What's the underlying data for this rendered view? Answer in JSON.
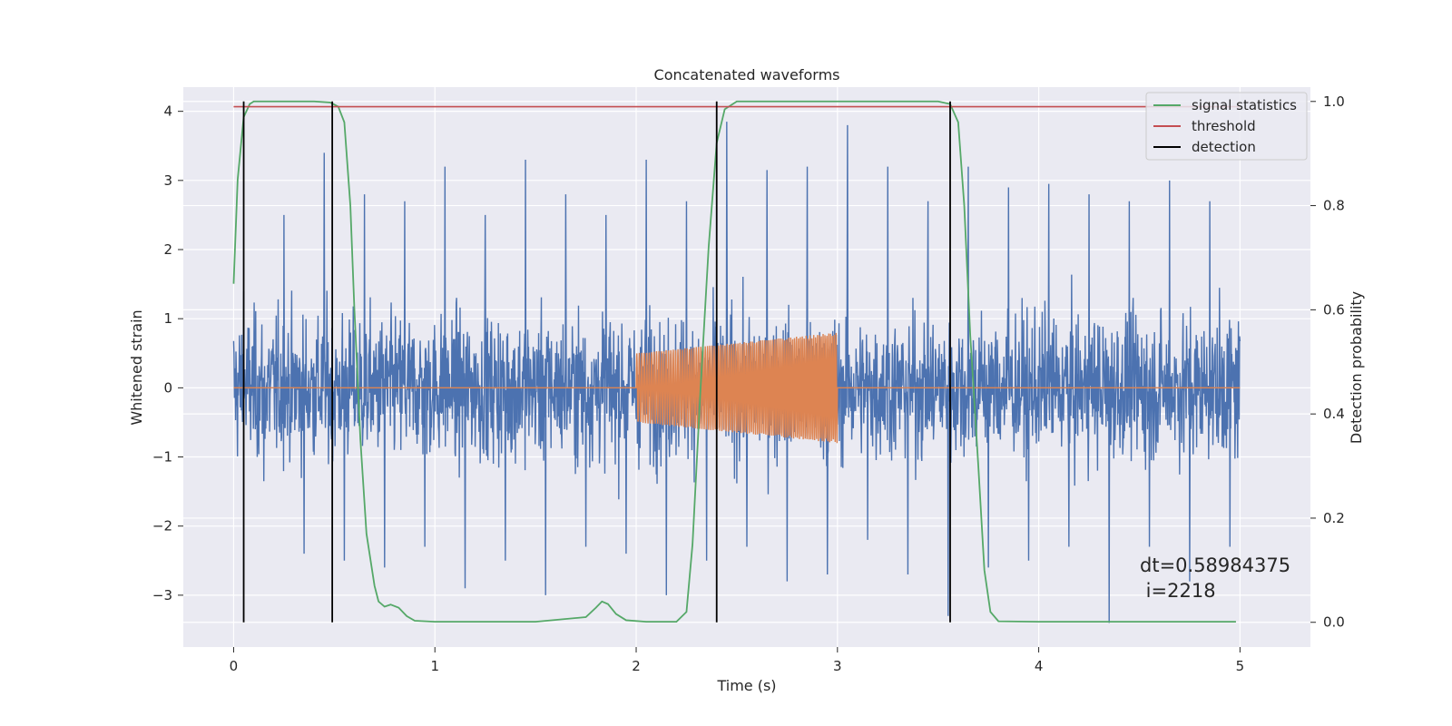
{
  "chart_data": {
    "type": "line",
    "title": "Concatenated waveforms",
    "xlabel": "Time (s)",
    "ylabel": "Whitened strain",
    "y2label": "Detection probability",
    "xlim": [
      -0.25,
      5.35
    ],
    "ylim": [
      -3.75,
      4.35
    ],
    "y2lim": [
      -0.0475,
      1.0275
    ],
    "xticks": [
      0,
      1,
      2,
      3,
      4,
      5
    ],
    "xtick_labels": [
      "0",
      "1",
      "2",
      "3",
      "4",
      "5"
    ],
    "yticks": [
      -3,
      -2,
      -1,
      0,
      1,
      2,
      3,
      4
    ],
    "ytick_labels": [
      "−3",
      "−2",
      "−1",
      "0",
      "1",
      "2",
      "3",
      "4"
    ],
    "y2ticks": [
      0.0,
      0.2,
      0.4,
      0.6,
      0.8,
      1.0
    ],
    "y2tick_labels": [
      "0.0",
      "0.2",
      "0.4",
      "0.6",
      "0.8",
      "1.0"
    ],
    "grid": true,
    "legend_position": "top-right",
    "colors": {
      "noise": "#4c72b0",
      "injection": "#dd8452",
      "signal_statistics": "#55a868",
      "threshold": "#c44e52",
      "detection": "#000000",
      "plot_bg": "#eaeaf2",
      "grid": "#ffffff"
    },
    "series": [
      {
        "name": "",
        "axis": "left",
        "description_key": "noise",
        "x_range": [
          0,
          5
        ],
        "envelope_peak_values": [
          1.4,
          -1.35,
          2.5,
          -2.4,
          3.4,
          -2.5,
          2.8,
          -2.6,
          2.7,
          -2.3,
          3.2,
          -2.9,
          2.5,
          -2.5,
          3.3,
          -3.0,
          2.8,
          -2.3,
          2.5,
          -2.4,
          3.3,
          -3.0,
          2.7,
          -2.5,
          3.85,
          -2.3,
          3.15,
          -2.8,
          3.2,
          -2.7,
          3.8,
          -2.2,
          3.2,
          -2.7,
          2.7,
          -3.3,
          3.2,
          -2.6,
          2.9,
          -2.5,
          2.95,
          -2.3,
          2.8,
          -3.4,
          2.7,
          -2.3,
          3.0,
          -2.8,
          2.7,
          -2.3
        ]
      },
      {
        "name": "",
        "axis": "left",
        "description_key": "injection",
        "x": [
          0,
          2,
          3,
          5
        ],
        "amplitude_start": 0.5,
        "amplitude_end": 0.8,
        "active_range": [
          2,
          3
        ]
      },
      {
        "name": "signal statistics",
        "axis": "right",
        "x": [
          0.0,
          0.02,
          0.05,
          0.08,
          0.1,
          0.2,
          0.3,
          0.4,
          0.48,
          0.52,
          0.55,
          0.58,
          0.6,
          0.63,
          0.66,
          0.7,
          0.72,
          0.75,
          0.78,
          0.82,
          0.86,
          0.9,
          1.0,
          1.5,
          1.75,
          1.8,
          1.83,
          1.86,
          1.9,
          1.95,
          2.05,
          2.2,
          2.25,
          2.28,
          2.32,
          2.36,
          2.4,
          2.44,
          2.5,
          2.6,
          3.0,
          3.5,
          3.56,
          3.6,
          3.63,
          3.66,
          3.7,
          3.73,
          3.76,
          3.8,
          4.0,
          4.5,
          4.98
        ],
        "y": [
          0.65,
          0.85,
          0.97,
          0.995,
          1.0,
          1.0,
          1.0,
          1.0,
          0.998,
          0.99,
          0.96,
          0.8,
          0.6,
          0.35,
          0.17,
          0.07,
          0.04,
          0.03,
          0.034,
          0.028,
          0.012,
          0.003,
          0.001,
          0.001,
          0.01,
          0.028,
          0.04,
          0.035,
          0.016,
          0.004,
          0.001,
          0.001,
          0.02,
          0.15,
          0.45,
          0.72,
          0.92,
          0.985,
          1.0,
          1.0,
          1.0,
          1.0,
          0.995,
          0.96,
          0.8,
          0.55,
          0.3,
          0.1,
          0.02,
          0.002,
          0.001,
          0.001,
          0.001
        ]
      },
      {
        "name": "threshold",
        "axis": "right",
        "x": [
          0,
          5
        ],
        "y": [
          0.99,
          0.99
        ]
      },
      {
        "name": "detection",
        "axis": "right",
        "x": [
          0.05,
          0.49,
          2.4,
          3.56
        ],
        "y_range": [
          0,
          1
        ]
      }
    ],
    "annotation": {
      "line1": "dt=0.58984375",
      "line2": " i=2218"
    }
  }
}
